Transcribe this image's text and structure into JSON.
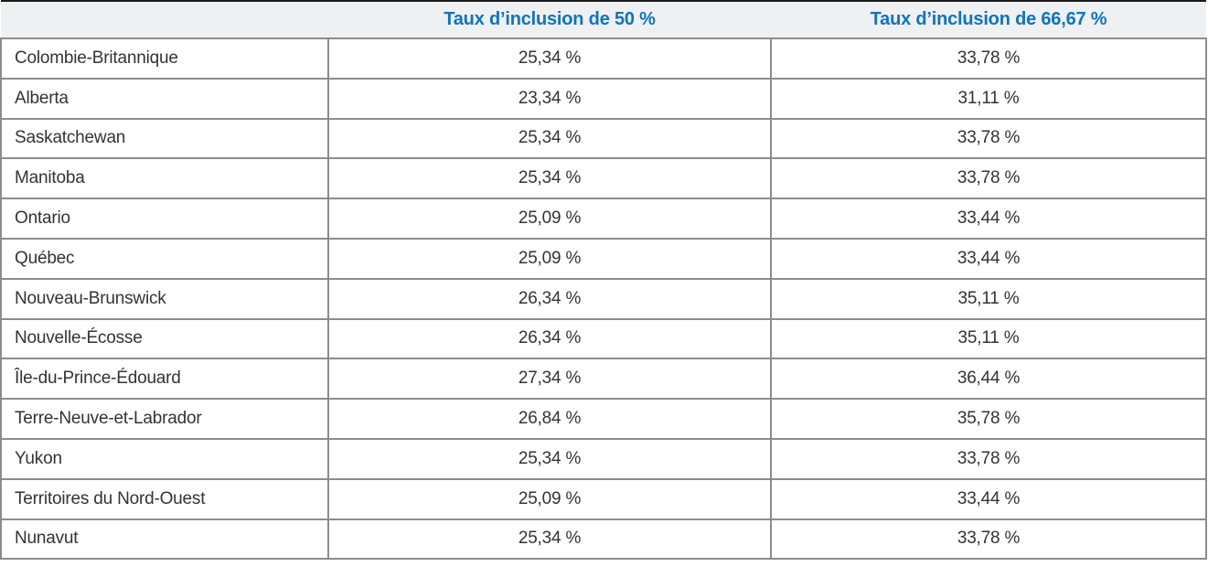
{
  "table": {
    "headers": [
      "",
      "Taux d’inclusion de 50 %",
      "Taux d’inclusion de 66,67 %"
    ],
    "rows": [
      {
        "region": "Colombie-Britannique",
        "rate_50": "25,34 %",
        "rate_6667": "33,78 %"
      },
      {
        "region": "Alberta",
        "rate_50": "23,34 %",
        "rate_6667": "31,11 %"
      },
      {
        "region": "Saskatchewan",
        "rate_50": "25,34 %",
        "rate_6667": "33,78 %"
      },
      {
        "region": "Manitoba",
        "rate_50": "25,34 %",
        "rate_6667": "33,78 %"
      },
      {
        "region": "Ontario",
        "rate_50": "25,09 %",
        "rate_6667": "33,44 %"
      },
      {
        "region": "Québec",
        "rate_50": "25,09 %",
        "rate_6667": "33,44 %"
      },
      {
        "region": "Nouveau-Brunswick",
        "rate_50": "26,34 %",
        "rate_6667": "35,11 %"
      },
      {
        "region": "Nouvelle-Écosse",
        "rate_50": "26,34 %",
        "rate_6667": "35,11 %"
      },
      {
        "region": "Île-du-Prince-Édouard",
        "rate_50": "27,34 %",
        "rate_6667": "36,44 %"
      },
      {
        "region": "Terre-Neuve-et-Labrador",
        "rate_50": "26,84 %",
        "rate_6667": "35,78 %"
      },
      {
        "region": "Yukon",
        "rate_50": "25,34 %",
        "rate_6667": "33,78 %"
      },
      {
        "region": "Territoires du Nord-Ouest",
        "rate_50": "25,09 %",
        "rate_6667": "33,44 %"
      },
      {
        "region": "Nunavut",
        "rate_50": "25,34 %",
        "rate_6667": "33,78 %"
      }
    ]
  },
  "colors": {
    "header_text": "#0E74BC",
    "header_bg": "#EFF0F1",
    "body_text": "#333333",
    "border": "#8C8C8C",
    "top_border": "#1A1A1A",
    "page_bg": "#FFFFFF"
  }
}
